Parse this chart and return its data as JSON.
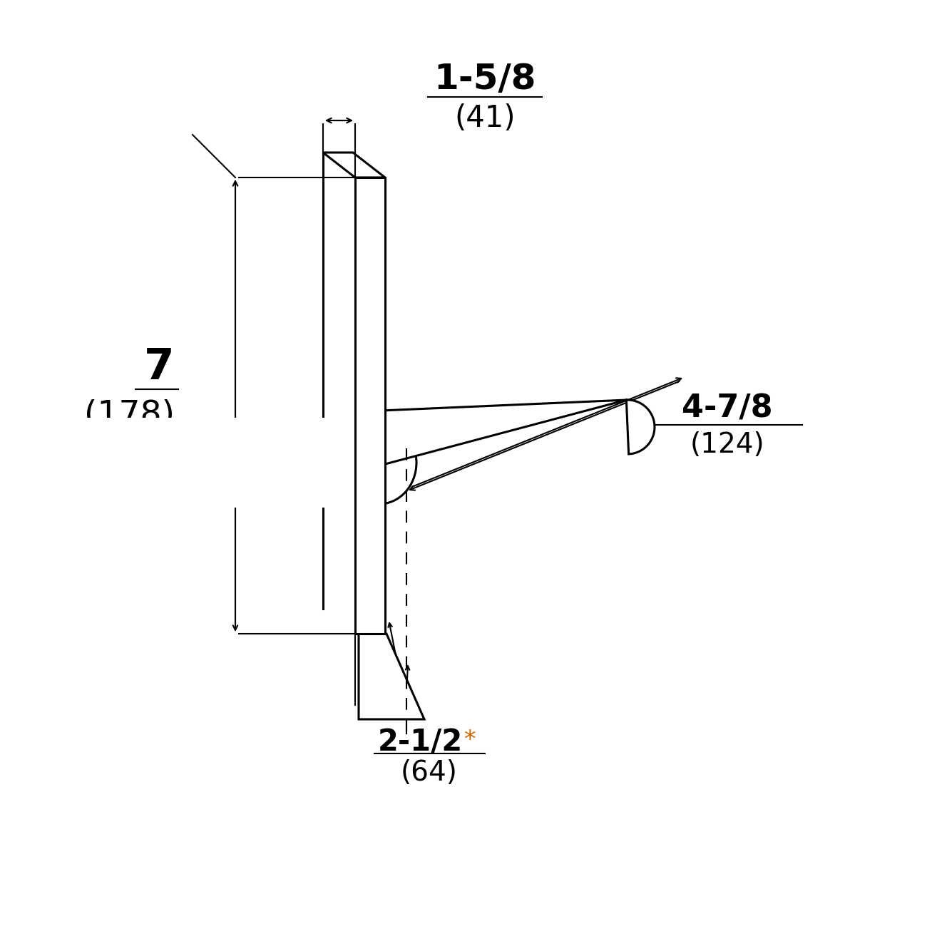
{
  "bg_color": "#ffffff",
  "line_color": "#000000",
  "fig_size": [
    12.8,
    12.8
  ],
  "dpi": 100,
  "dim_1_text": "1-5/8",
  "dim_1_sub": "(41)",
  "dim_2_text": "7",
  "dim_2_sub": "(178)",
  "dim_3_text": "4-7/8",
  "dim_3_sub": "(124)",
  "dim_4_text": "2-1/2",
  "dim_4_star": "*",
  "dim_4_sub": "(64)",
  "plate_lw": 2.2,
  "dim_lw": 1.5,
  "lever_lw": 2.2
}
